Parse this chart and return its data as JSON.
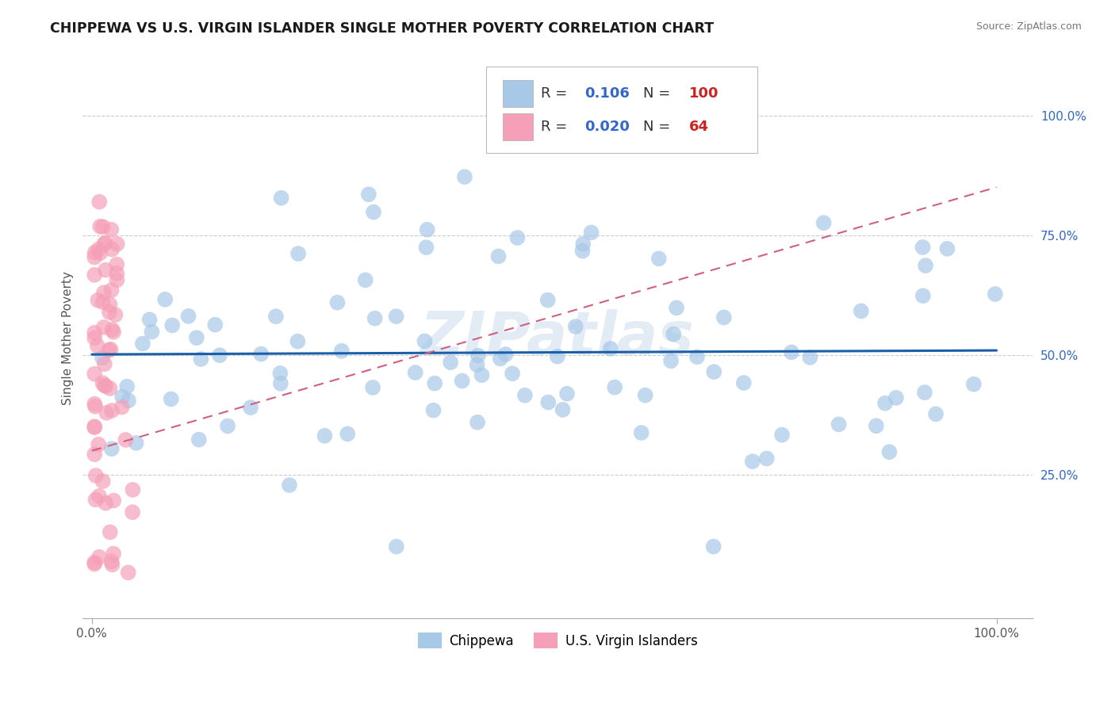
{
  "title": "CHIPPEWA VS U.S. VIRGIN ISLANDER SINGLE MOTHER POVERTY CORRELATION CHART",
  "source": "Source: ZipAtlas.com",
  "ylabel": "Single Mother Poverty",
  "chippewa_R": 0.106,
  "chippewa_N": 100,
  "virgin_R": 0.02,
  "virgin_N": 64,
  "chippewa_color": "#a8c8e8",
  "chippewa_line_color": "#1a5fa8",
  "virgin_color": "#f5a0b8",
  "virgin_line_color": "#d06080",
  "watermark": "ZIPatlas",
  "background_color": "#ffffff",
  "title_color": "#1a1a1a",
  "title_fontsize": 12.5,
  "legend_R_color": "#3366cc",
  "legend_N_color": "#cc2222",
  "legend_label_color": "#333333",
  "right_tick_color": "#3366cc",
  "source_color": "#777777"
}
